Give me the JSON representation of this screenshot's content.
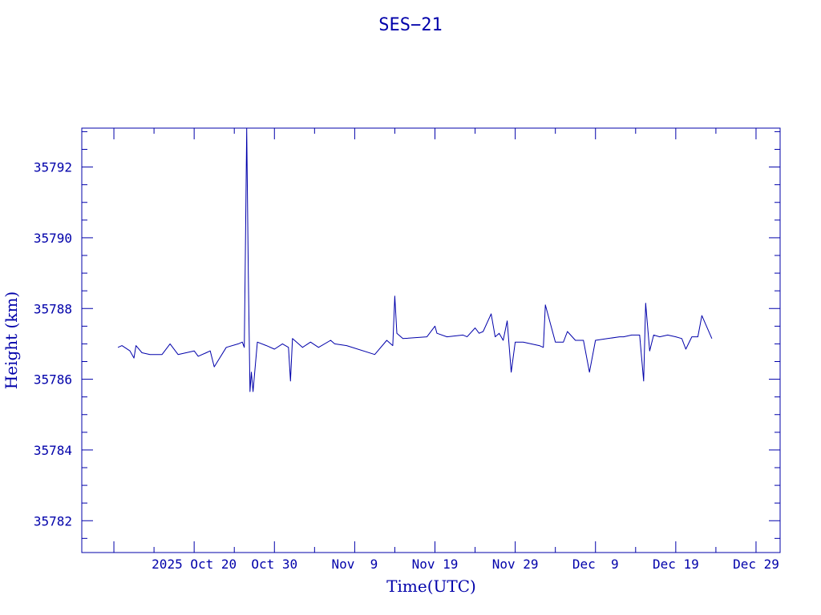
{
  "chart_data": {
    "type": "line",
    "title": "SES−21",
    "xlabel": "Time(UTC)",
    "ylabel": "Height (km)",
    "xlim": [
      "2025-10-06",
      "2026-01-01"
    ],
    "ylim": [
      35781.1,
      35793.1
    ],
    "x_ticks": [
      {
        "date": "2025-10-20",
        "label": "2025 Oct 20"
      },
      {
        "date": "2025-10-30",
        "label": "Oct 30"
      },
      {
        "date": "2025-11-09",
        "label": "Nov  9"
      },
      {
        "date": "2025-11-19",
        "label": "Nov 19"
      },
      {
        "date": "2025-11-29",
        "label": "Nov 29"
      },
      {
        "date": "2025-12-09",
        "label": "Dec  9"
      },
      {
        "date": "2025-12-19",
        "label": "Dec 19"
      },
      {
        "date": "2025-12-29",
        "label": "Dec 29"
      }
    ],
    "y_ticks": [
      35782,
      35784,
      35786,
      35788,
      35790,
      35792
    ],
    "color": "#0000aa",
    "series": [
      {
        "points": [
          [
            "2025-10-10T12:00",
            35786.9
          ],
          [
            "2025-10-11T00:00",
            35786.95
          ],
          [
            "2025-10-12T00:00",
            35786.8
          ],
          [
            "2025-10-12T12:00",
            35786.6
          ],
          [
            "2025-10-12T18:00",
            35786.95
          ],
          [
            "2025-10-13T12:00",
            35786.75
          ],
          [
            "2025-10-14T12:00",
            35786.7
          ],
          [
            "2025-10-16T00:00",
            35786.7
          ],
          [
            "2025-10-17T00:00",
            35787.0
          ],
          [
            "2025-10-18T00:00",
            35786.7
          ],
          [
            "2025-10-20T00:00",
            35786.8
          ],
          [
            "2025-10-20T12:00",
            35786.65
          ],
          [
            "2025-10-21T12:00",
            35786.75
          ],
          [
            "2025-10-22T00:00",
            35786.8
          ],
          [
            "2025-10-22T12:00",
            35786.35
          ],
          [
            "2025-10-24T00:00",
            35786.9
          ],
          [
            "2025-10-25T12:00",
            35787.0
          ],
          [
            "2025-10-26T00:00",
            35787.05
          ],
          [
            "2025-10-26T06:00",
            35786.9
          ],
          [
            "2025-10-26T09:00",
            35789.5
          ],
          [
            "2025-10-26T13:00",
            35793.1
          ],
          [
            "2025-10-26T18:00",
            35789.0
          ],
          [
            "2025-10-26T23:00",
            35785.65
          ],
          [
            "2025-10-27T03:00",
            35786.2
          ],
          [
            "2025-10-27T08:00",
            35785.65
          ],
          [
            "2025-10-27T14:00",
            35786.3
          ],
          [
            "2025-10-27T21:00",
            35787.05
          ],
          [
            "2025-10-29T00:00",
            35786.95
          ],
          [
            "2025-10-30T00:00",
            35786.85
          ],
          [
            "2025-10-31T00:00",
            35787.0
          ],
          [
            "2025-10-31T18:00",
            35786.9
          ],
          [
            "2025-11-01T00:00",
            35785.95
          ],
          [
            "2025-11-01T06:00",
            35787.15
          ],
          [
            "2025-11-02T12:00",
            35786.9
          ],
          [
            "2025-11-03T12:00",
            35787.05
          ],
          [
            "2025-11-04T12:00",
            35786.9
          ],
          [
            "2025-11-06T00:00",
            35787.1
          ],
          [
            "2025-11-06T12:00",
            35787.0
          ],
          [
            "2025-11-08T00:00",
            35786.95
          ],
          [
            "2025-11-11T12:00",
            35786.7
          ],
          [
            "2025-11-13T00:00",
            35787.1
          ],
          [
            "2025-11-13T18:00",
            35786.95
          ],
          [
            "2025-11-14T00:00",
            35788.35
          ],
          [
            "2025-11-14T06:00",
            35787.3
          ],
          [
            "2025-11-15T00:00",
            35787.15
          ],
          [
            "2025-11-18T00:00",
            35787.2
          ],
          [
            "2025-11-19T00:00",
            35787.5
          ],
          [
            "2025-11-19T06:00",
            35787.3
          ],
          [
            "2025-11-20T12:00",
            35787.2
          ],
          [
            "2025-11-22T12:00",
            35787.25
          ],
          [
            "2025-11-23T00:00",
            35787.2
          ],
          [
            "2025-11-24T00:00",
            35787.45
          ],
          [
            "2025-11-24T12:00",
            35787.3
          ],
          [
            "2025-11-25T00:00",
            35787.35
          ],
          [
            "2025-11-26T00:00",
            35787.85
          ],
          [
            "2025-11-26T12:00",
            35787.2
          ],
          [
            "2025-11-27T00:00",
            35787.3
          ],
          [
            "2025-11-27T12:00",
            35787.1
          ],
          [
            "2025-11-28T00:00",
            35787.65
          ],
          [
            "2025-11-28T12:00",
            35786.2
          ],
          [
            "2025-11-29T00:00",
            35787.05
          ],
          [
            "2025-11-30T00:00",
            35787.05
          ],
          [
            "2025-12-02T00:00",
            35786.95
          ],
          [
            "2025-12-02T12:00",
            35786.9
          ],
          [
            "2025-12-02T18:00",
            35788.1
          ],
          [
            "2025-12-04T00:00",
            35787.05
          ],
          [
            "2025-12-05T00:00",
            35787.05
          ],
          [
            "2025-12-05T12:00",
            35787.35
          ],
          [
            "2025-12-06T12:00",
            35787.1
          ],
          [
            "2025-12-07T12:00",
            35787.1
          ],
          [
            "2025-12-08T06:00",
            35786.2
          ],
          [
            "2025-12-09T00:00",
            35787.1
          ],
          [
            "2025-12-10T12:00",
            35787.15
          ],
          [
            "2025-12-12T00:00",
            35787.2
          ],
          [
            "2025-12-12T12:00",
            35787.2
          ],
          [
            "2025-12-13T12:00",
            35787.25
          ],
          [
            "2025-12-14T12:00",
            35787.25
          ],
          [
            "2025-12-15T00:00",
            35785.95
          ],
          [
            "2025-12-15T06:00",
            35788.15
          ],
          [
            "2025-12-15T18:00",
            35786.8
          ],
          [
            "2025-12-16T06:00",
            35787.25
          ],
          [
            "2025-12-17T00:00",
            35787.2
          ],
          [
            "2025-12-18T00:00",
            35787.25
          ],
          [
            "2025-12-19T00:00",
            35787.2
          ],
          [
            "2025-12-19T18:00",
            35787.15
          ],
          [
            "2025-12-20T06:00",
            35786.85
          ],
          [
            "2025-12-21T00:00",
            35787.2
          ],
          [
            "2025-12-21T18:00",
            35787.2
          ],
          [
            "2025-12-22T06:00",
            35787.8
          ],
          [
            "2025-12-23T12:00",
            35787.15
          ]
        ]
      }
    ]
  }
}
